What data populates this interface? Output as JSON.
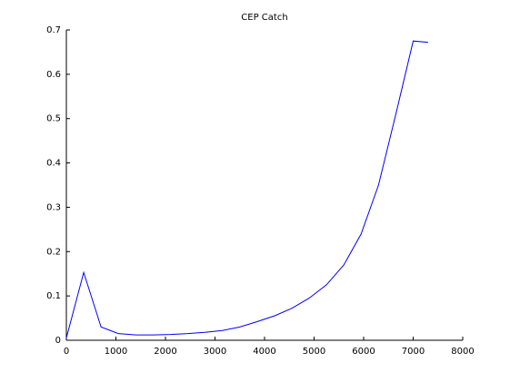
{
  "chart_data": {
    "type": "line",
    "title": "CEP Catch",
    "x": [
      0,
      350,
      700,
      1050,
      1400,
      1750,
      2100,
      2450,
      2800,
      3150,
      3500,
      3850,
      4200,
      4550,
      4900,
      5250,
      5600,
      5950,
      6300,
      6650,
      7000,
      7300
    ],
    "series": [
      {
        "name": "CEP Catch",
        "color": "#0000ff",
        "values": [
          0.005,
          0.153,
          0.03,
          0.015,
          0.012,
          0.012,
          0.013,
          0.015,
          0.018,
          0.022,
          0.03,
          0.042,
          0.055,
          0.072,
          0.095,
          0.125,
          0.17,
          0.24,
          0.35,
          0.51,
          0.675,
          0.672
        ]
      }
    ],
    "xlim": [
      0,
      8000
    ],
    "xticks": [
      0,
      1000,
      2000,
      3000,
      4000,
      5000,
      6000,
      7000,
      8000
    ],
    "ylim": [
      0,
      0.7
    ],
    "yticks": [
      0,
      0.1,
      0.2,
      0.3,
      0.4,
      0.5,
      0.6,
      0.7
    ]
  }
}
